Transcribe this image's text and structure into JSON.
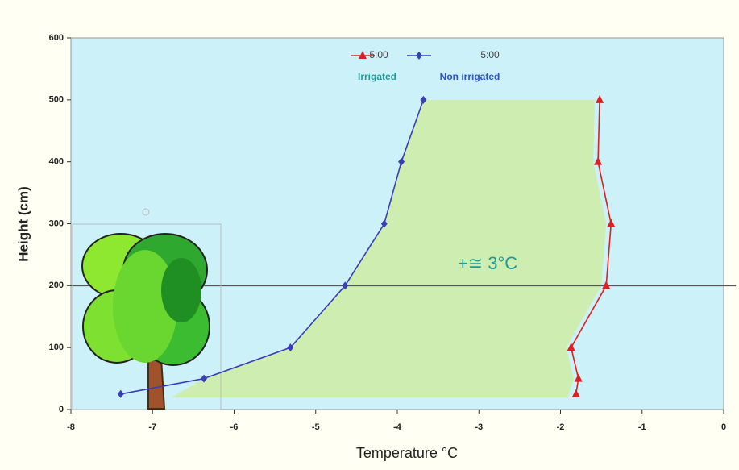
{
  "chart_data": {
    "type": "line",
    "x_label": "Temperature °C",
    "y_label": "Height (cm)",
    "annotation": "+≅ 3°C",
    "reference_line": 200,
    "xlim": [
      -8,
      0
    ],
    "xticks": [
      -8,
      -7,
      -6,
      -5,
      -4,
      -3,
      -2,
      -1,
      0
    ],
    "ylim": [
      0,
      600
    ],
    "yticks": [
      0,
      100,
      200,
      300,
      400,
      500,
      600
    ],
    "series": [
      {
        "name": "5:00",
        "group": "Irrigated",
        "color": "#e02020",
        "marker": "triangle",
        "x": [
          -1.81,
          -1.78,
          -1.87,
          -1.44,
          -1.38,
          -1.54,
          -1.52
        ],
        "values": [
          25,
          50,
          100,
          200,
          300,
          400,
          500
        ]
      },
      {
        "name": "5:00",
        "group": "Non irrigated",
        "color": "#3a3fb8",
        "marker": "diamond",
        "x": [
          -7.39,
          -6.37,
          -5.31,
          -4.64,
          -4.16,
          -3.95,
          -3.68
        ],
        "values": [
          25,
          50,
          100,
          200,
          300,
          400,
          500
        ]
      }
    ]
  }
}
